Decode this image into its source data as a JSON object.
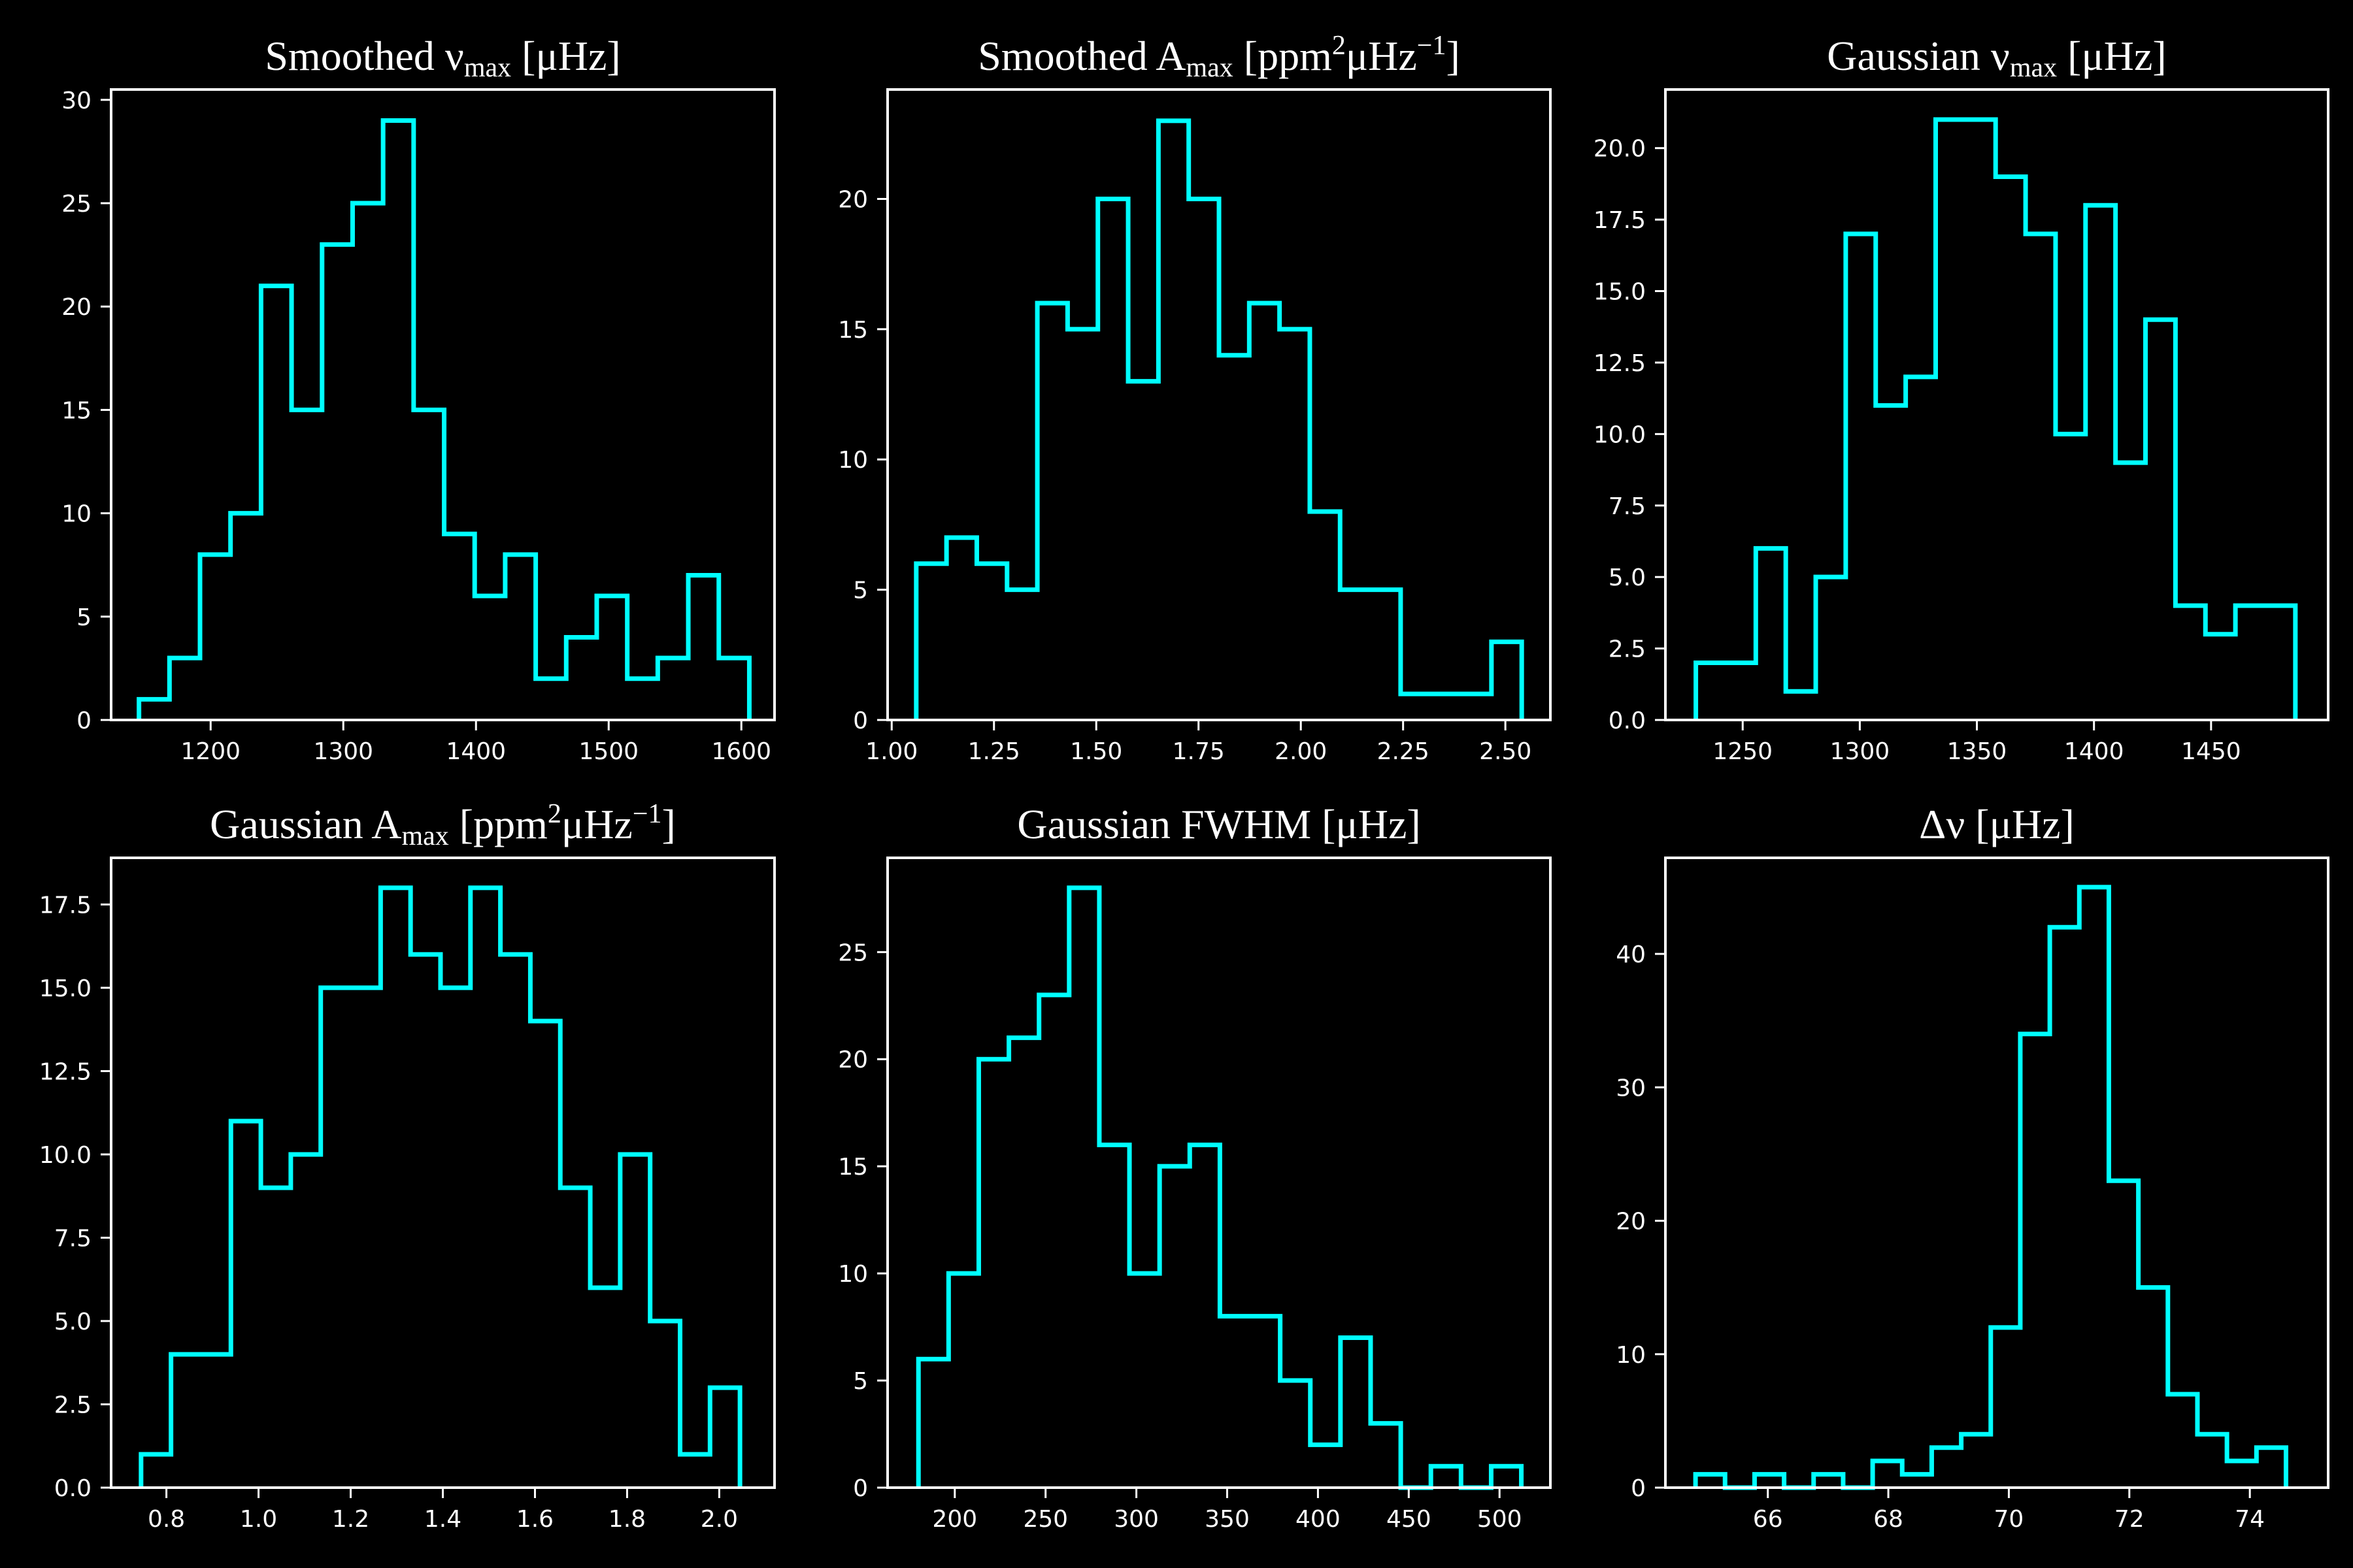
{
  "colors": {
    "background": "#000000",
    "axes": "#ffffff",
    "histogram": "#00ffff"
  },
  "chart_data": [
    {
      "type": "histogram",
      "title": "Smoothed νmax [μHz]",
      "title_parts": [
        {
          "text": "Smoothed ν"
        },
        {
          "text": "max",
          "sub": true
        },
        {
          "text": " [μHz]"
        }
      ],
      "xlim": [
        1125,
        1625
      ],
      "ylim": [
        0,
        30.5
      ],
      "xticks": [
        1200,
        1300,
        1400,
        1500,
        1600
      ],
      "yticks": [
        0,
        5,
        10,
        15,
        20,
        25,
        30
      ],
      "bin_edges": [
        1146,
        1169,
        1192,
        1215,
        1238,
        1261,
        1284,
        1307,
        1330,
        1353,
        1376,
        1399,
        1422,
        1445,
        1468,
        1491,
        1514,
        1537,
        1560,
        1583,
        1606
      ],
      "counts": [
        1,
        3,
        8,
        10,
        21,
        15,
        23,
        25,
        29,
        15,
        9,
        6,
        8,
        2,
        4,
        6,
        2,
        3,
        7,
        3
      ]
    },
    {
      "type": "histogram",
      "title": "Smoothed Amax [ppm2μHz−1]",
      "title_parts": [
        {
          "text": "Smoothed A"
        },
        {
          "text": "max",
          "sub": true
        },
        {
          "text": " [ppm"
        },
        {
          "text": "2",
          "sup": true
        },
        {
          "text": "μHz"
        },
        {
          "text": "−1",
          "sup": true
        },
        {
          "text": "]"
        }
      ],
      "xlim": [
        0.99,
        2.61
      ],
      "ylim": [
        0,
        24.2
      ],
      "xticks": [
        1.0,
        1.25,
        1.5,
        1.75,
        2.0,
        2.25,
        2.5
      ],
      "xtick_labels": [
        "1.00",
        "1.25",
        "1.50",
        "1.75",
        "2.00",
        "2.25",
        "2.50"
      ],
      "yticks": [
        0,
        5,
        10,
        15,
        20
      ],
      "bin_edges": [
        1.06,
        1.134,
        1.208,
        1.282,
        1.356,
        1.43,
        1.504,
        1.578,
        1.652,
        1.726,
        1.8,
        1.874,
        1.948,
        2.022,
        2.096,
        2.17,
        2.244,
        2.318,
        2.392,
        2.466,
        2.54
      ],
      "counts": [
        6,
        7,
        6,
        5,
        16,
        15,
        20,
        13,
        23,
        20,
        14,
        16,
        15,
        8,
        5,
        5,
        1,
        1,
        1,
        3
      ]
    },
    {
      "type": "histogram",
      "title": "Gaussian νmax [μHz]",
      "title_parts": [
        {
          "text": "Gaussian ν"
        },
        {
          "text": "max",
          "sub": true
        },
        {
          "text": " [μHz]"
        }
      ],
      "xlim": [
        1217,
        1500
      ],
      "ylim": [
        0,
        22.05
      ],
      "xticks": [
        1250,
        1300,
        1350,
        1400,
        1450
      ],
      "yticks": [
        0,
        2.5,
        5,
        7.5,
        10,
        12.5,
        15,
        17.5,
        20
      ],
      "ytick_labels": [
        "0.0",
        "2.5",
        "5.0",
        "7.5",
        "10.0",
        "12.5",
        "15.0",
        "17.5",
        "20.0"
      ],
      "bin_edges": [
        1230,
        1242.8,
        1255.6,
        1268.4,
        1281.2,
        1294,
        1306.8,
        1319.6,
        1332.4,
        1345.2,
        1358,
        1370.8,
        1383.6,
        1396.4,
        1409.2,
        1422,
        1434.8,
        1447.6,
        1460.4,
        1473.2,
        1486
      ],
      "counts": [
        2,
        2,
        6,
        1,
        5,
        17,
        11,
        12,
        21,
        21,
        19,
        17,
        10,
        18,
        9,
        14,
        4,
        3,
        4,
        4
      ]
    },
    {
      "type": "histogram",
      "title": "Gaussian Amax [ppm2μHz−1]",
      "title_parts": [
        {
          "text": "Gaussian A"
        },
        {
          "text": "max",
          "sub": true
        },
        {
          "text": " [ppm"
        },
        {
          "text": "2",
          "sup": true
        },
        {
          "text": "μHz"
        },
        {
          "text": "−1",
          "sup": true
        },
        {
          "text": "]"
        }
      ],
      "xlim": [
        0.68,
        2.12
      ],
      "ylim": [
        0,
        18.9
      ],
      "xticks": [
        0.8,
        1.0,
        1.2,
        1.4,
        1.6,
        1.8,
        2.0
      ],
      "xtick_labels": [
        "0.8",
        "1.0",
        "1.2",
        "1.4",
        "1.6",
        "1.8",
        "2.0"
      ],
      "yticks": [
        0,
        2.5,
        5,
        7.5,
        10,
        12.5,
        15,
        17.5
      ],
      "ytick_labels": [
        "0.0",
        "2.5",
        "5.0",
        "7.5",
        "10.0",
        "12.5",
        "15.0",
        "17.5"
      ],
      "bin_edges": [
        0.745,
        0.81,
        0.875,
        0.94,
        1.005,
        1.07,
        1.135,
        1.2,
        1.265,
        1.33,
        1.395,
        1.46,
        1.525,
        1.59,
        1.655,
        1.72,
        1.785,
        1.85,
        1.915,
        1.98,
        2.045
      ],
      "counts": [
        1,
        4,
        4,
        11,
        9,
        10,
        15,
        15,
        18,
        16,
        15,
        18,
        16,
        14,
        9,
        6,
        10,
        5,
        1,
        3
      ]
    },
    {
      "type": "histogram",
      "title": "Gaussian FWHM [μHz]",
      "title_parts": [
        {
          "text": "Gaussian FWHM [μHz]"
        }
      ],
      "xlim": [
        163,
        528
      ],
      "ylim": [
        0,
        29.4
      ],
      "xticks": [
        200,
        250,
        300,
        350,
        400,
        450,
        500
      ],
      "yticks": [
        0,
        5,
        10,
        15,
        20,
        25
      ],
      "bin_edges": [
        180,
        196.6,
        213.2,
        229.8,
        246.4,
        263,
        279.6,
        296.2,
        312.8,
        329.4,
        346,
        362.6,
        379.2,
        395.8,
        412.4,
        429,
        445.6,
        462.2,
        478.8,
        495.4,
        512
      ],
      "counts": [
        6,
        10,
        20,
        21,
        23,
        28,
        16,
        10,
        15,
        16,
        8,
        8,
        5,
        2,
        7,
        3,
        0,
        1,
        0,
        1
      ]
    },
    {
      "type": "histogram",
      "title": "Δν [μHz]",
      "title_parts": [
        {
          "text": "Δν [μHz]"
        }
      ],
      "xlim": [
        64.3,
        75.3
      ],
      "ylim": [
        0,
        47.2
      ],
      "xticks": [
        66,
        68,
        70,
        72,
        74
      ],
      "yticks": [
        0,
        10,
        20,
        30,
        40
      ],
      "bin_edges": [
        64.8,
        65.29,
        65.78,
        66.27,
        66.76,
        67.25,
        67.74,
        68.23,
        68.72,
        69.21,
        69.7,
        70.19,
        70.68,
        71.17,
        71.66,
        72.15,
        72.64,
        73.13,
        73.62,
        74.11,
        74.6
      ],
      "counts": [
        1,
        0,
        1,
        0,
        1,
        0,
        2,
        1,
        3,
        4,
        12,
        34,
        42,
        45,
        23,
        15,
        7,
        4,
        2,
        3
      ]
    }
  ]
}
